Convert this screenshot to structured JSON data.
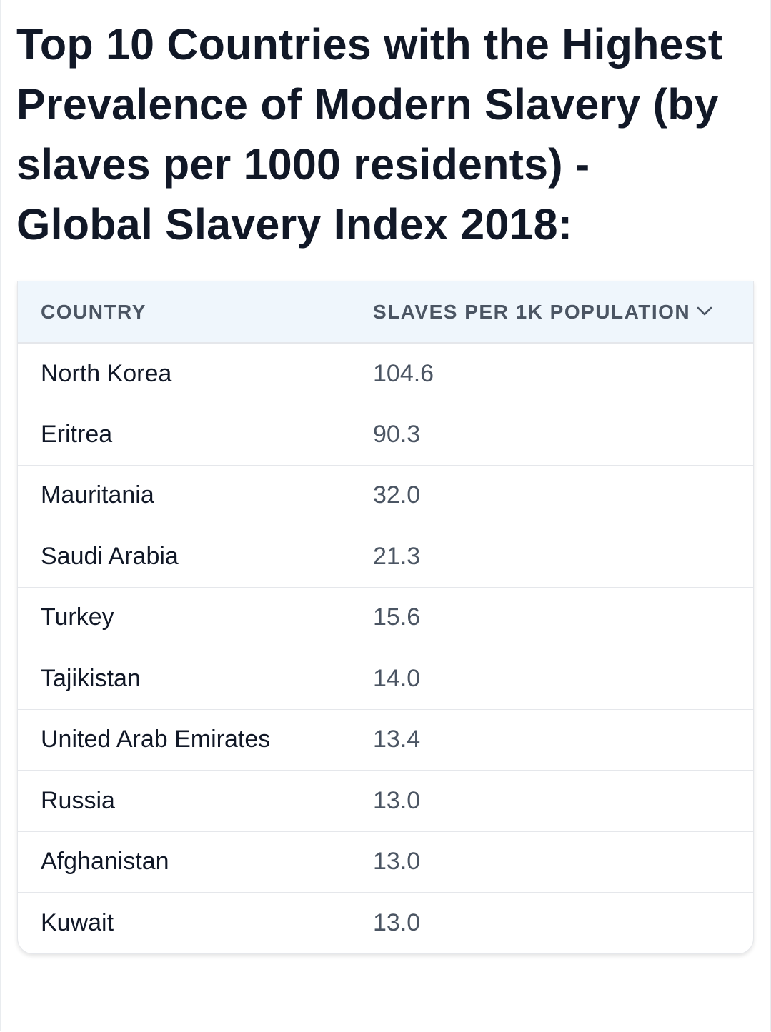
{
  "title": "Top 10 Countries with the Highest Prevalence of Modern Slavery (by slaves per 1000 residents) - Global Slavery Index 2018:",
  "table": {
    "headers": {
      "country": "COUNTRY",
      "value": "SLAVES PER 1K POPULATION",
      "sort_icon": "chevron-down-icon"
    },
    "rows": [
      {
        "country": "North Korea",
        "value": "104.6"
      },
      {
        "country": "Eritrea",
        "value": "90.3"
      },
      {
        "country": "Mauritania",
        "value": "32.0"
      },
      {
        "country": "Saudi Arabia",
        "value": "21.3"
      },
      {
        "country": "Turkey",
        "value": "15.6"
      },
      {
        "country": "Tajikistan",
        "value": "14.0"
      },
      {
        "country": "United Arab Emirates",
        "value": "13.4"
      },
      {
        "country": "Russia",
        "value": "13.0"
      },
      {
        "country": "Afghanistan",
        "value": "13.0"
      },
      {
        "country": "Kuwait",
        "value": "13.0"
      }
    ]
  },
  "colors": {
    "header_background": "#eff6fc",
    "header_text": "#4b5563",
    "title_text": "#111827",
    "border": "#e5e7eb"
  }
}
